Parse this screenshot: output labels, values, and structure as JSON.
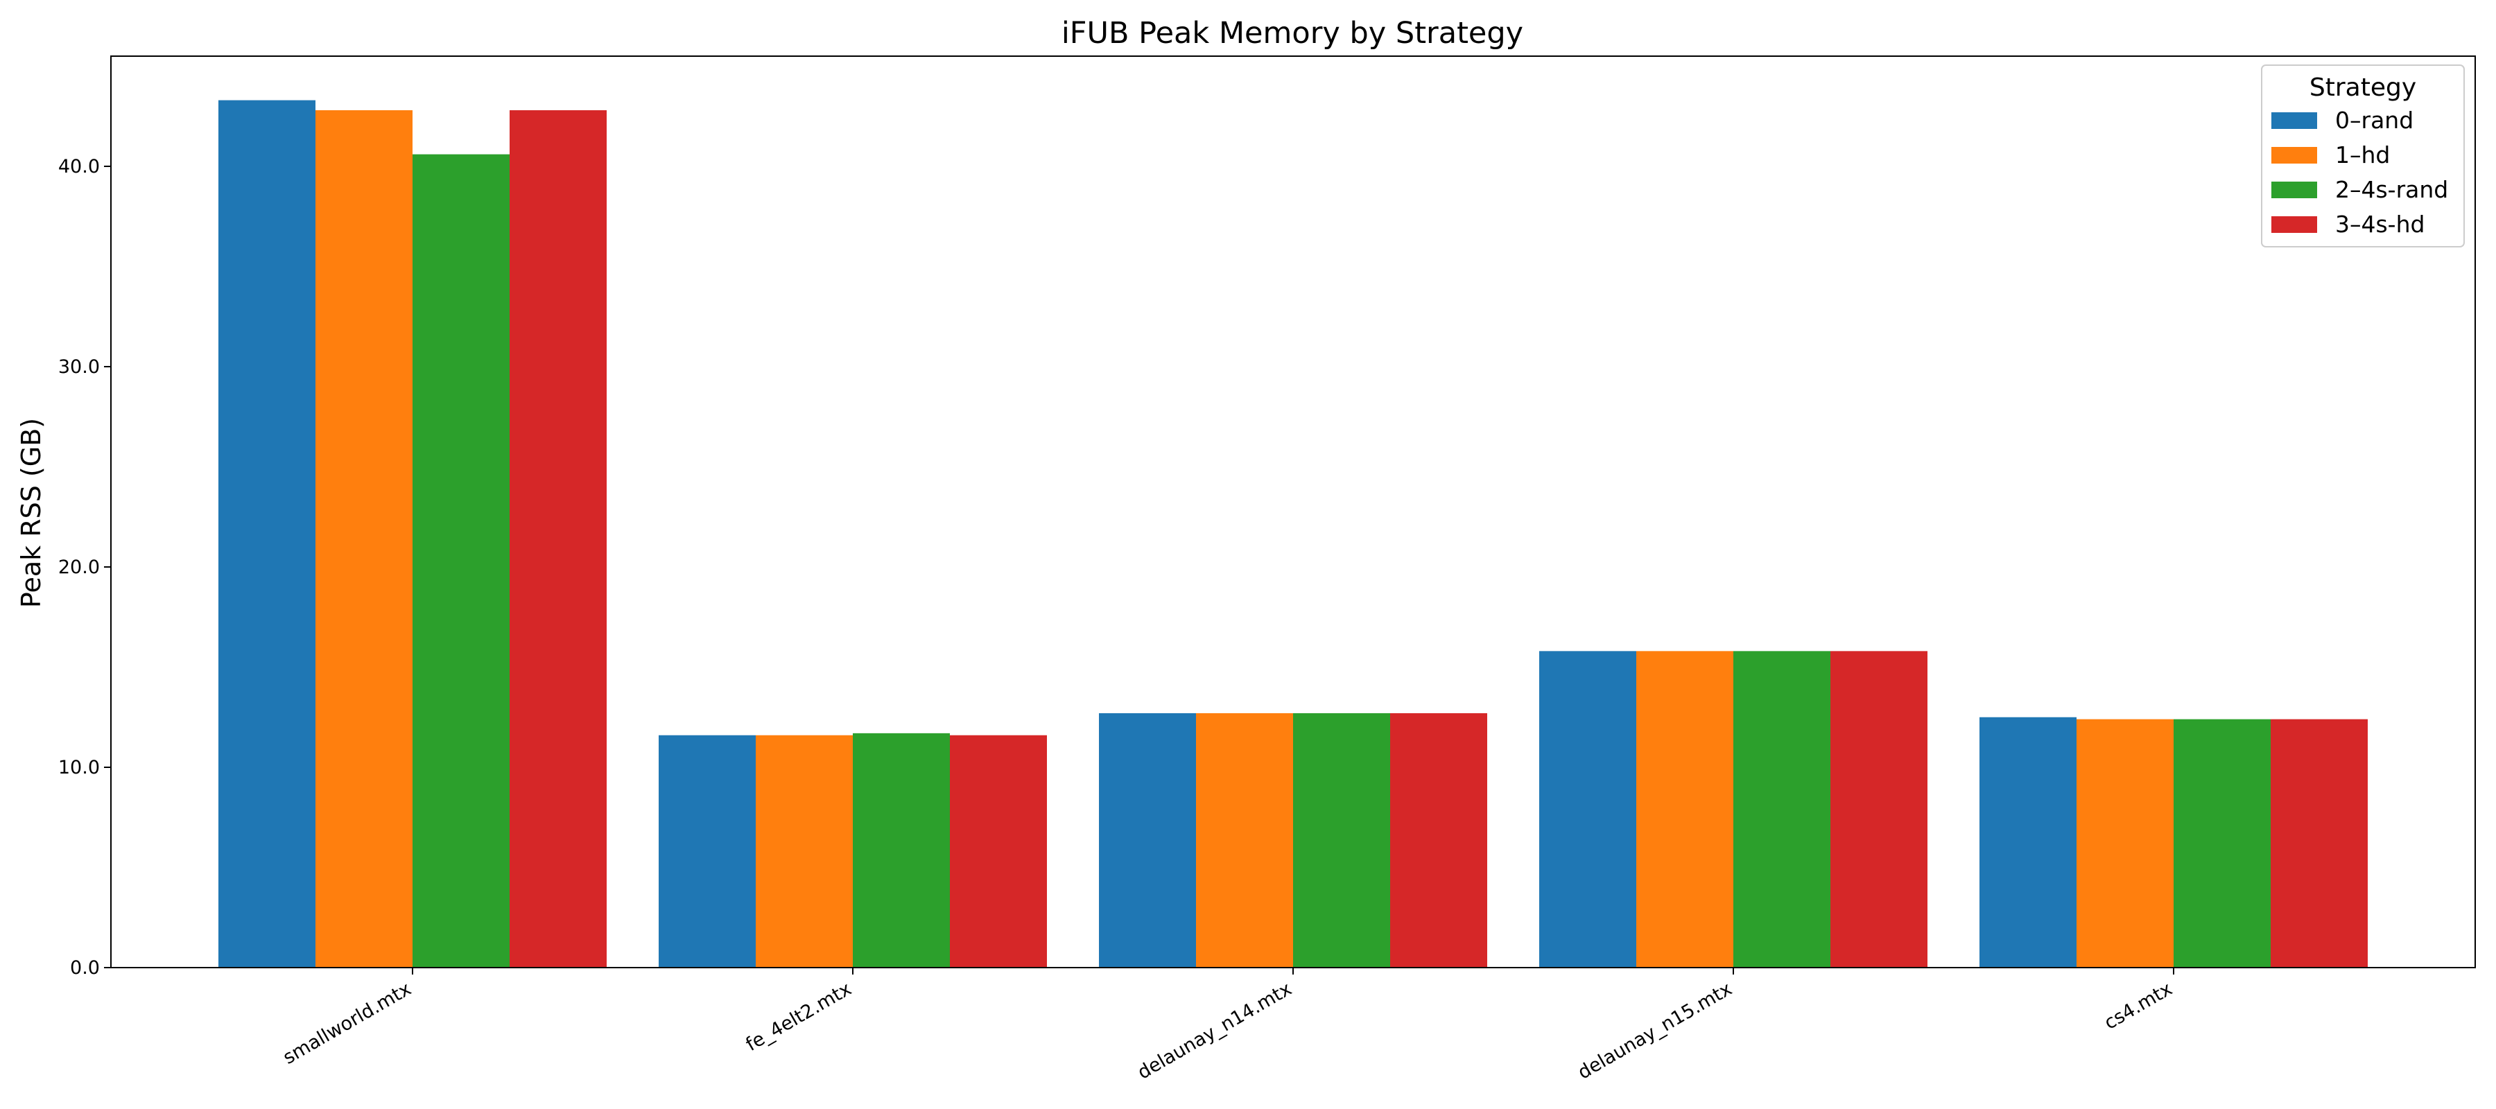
{
  "chart_data": {
    "type": "bar",
    "title": "iFUB Peak Memory by Strategy",
    "xlabel": "",
    "ylabel": "Peak RSS (GB)",
    "categories": [
      "smallworld.mtx",
      "fe_4elt2.mtx",
      "delaunay_n14.mtx",
      "delaunay_n15.mtx",
      "cs4.mtx"
    ],
    "series": [
      {
        "name": "0–rand",
        "color": "#1f77b4",
        "values": [
          43.3,
          11.6,
          12.7,
          15.8,
          12.5
        ]
      },
      {
        "name": "1–hd",
        "color": "#ff7f0e",
        "values": [
          42.8,
          11.6,
          12.7,
          15.8,
          12.4
        ]
      },
      {
        "name": "2–4s-rand",
        "color": "#2ca02c",
        "values": [
          40.6,
          11.7,
          12.7,
          15.8,
          12.4
        ]
      },
      {
        "name": "3–4s-hd",
        "color": "#d62728",
        "values": [
          42.8,
          11.6,
          12.7,
          15.8,
          12.4
        ]
      }
    ],
    "ylim": [
      0,
      45.5
    ],
    "yticks": [
      0.0,
      10.0,
      20.0,
      30.0,
      40.0
    ],
    "ytick_labels": [
      "0.0",
      "10.0",
      "20.0",
      "30.0",
      "40.0"
    ],
    "legend": {
      "title": "Strategy",
      "placement": "top-right"
    },
    "grid": false
  }
}
